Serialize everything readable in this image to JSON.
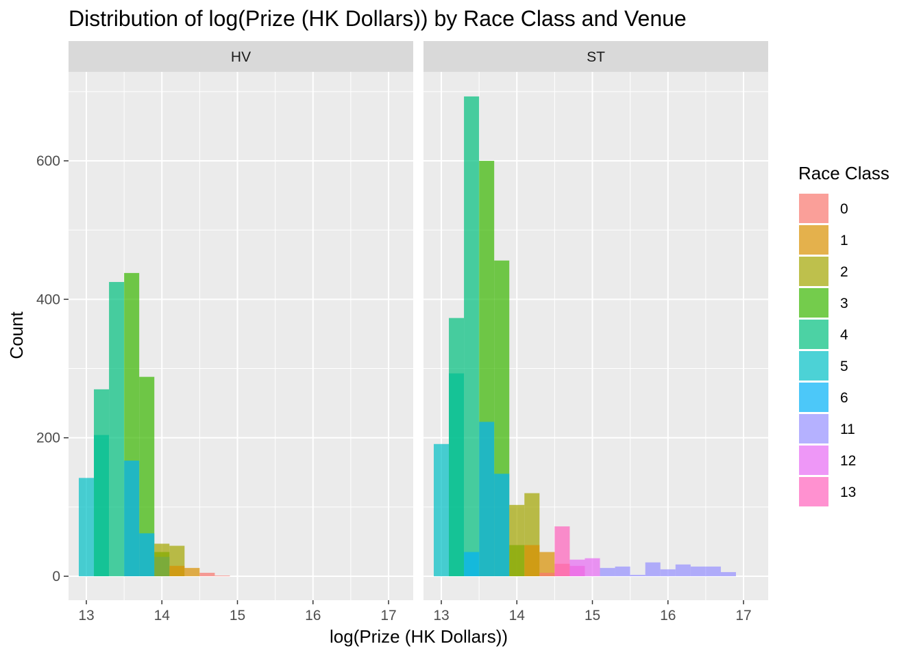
{
  "chart_data": {
    "type": "histogram",
    "title": "Distribution of log(Prize (HK Dollars)) by Race Class and Venue",
    "xlabel": "log(Prize (HK Dollars))",
    "ylabel": "Count",
    "xlim": [
      12.8,
      17.3
    ],
    "ylim": [
      -30,
      720
    ],
    "x_ticks": [
      13,
      14,
      15,
      16,
      17
    ],
    "y_ticks": [
      0,
      200,
      400,
      600
    ],
    "bin_width": 0.2,
    "grid": true,
    "bar_opacity": 0.7,
    "legend": {
      "title": "Race Class",
      "position": "right",
      "entries": [
        {
          "label": "0",
          "color": "#F8766D"
        },
        {
          "label": "1",
          "color": "#D89000"
        },
        {
          "label": "2",
          "color": "#A3A500"
        },
        {
          "label": "3",
          "color": "#39B600"
        },
        {
          "label": "4",
          "color": "#00BF7D"
        },
        {
          "label": "5",
          "color": "#00BFC4"
        },
        {
          "label": "6",
          "color": "#00B0F6"
        },
        {
          "label": "11",
          "color": "#9590FF"
        },
        {
          "label": "12",
          "color": "#E76BF3"
        },
        {
          "label": "13",
          "color": "#FF62BC"
        }
      ]
    },
    "panels": [
      {
        "name": "HV",
        "series": [
          {
            "name": "5",
            "bins": [
              [
                13.0,
                142
              ],
              [
                13.2,
                204
              ],
              [
                13.4,
                0
              ]
            ]
          },
          {
            "name": "4",
            "bins": [
              [
                13.2,
                270
              ],
              [
                13.4,
                425
              ],
              [
                13.6,
                0
              ]
            ]
          },
          {
            "name": "3",
            "bins": [
              [
                13.6,
                438
              ],
              [
                13.8,
                288
              ],
              [
                14.0,
                35
              ],
              [
                14.2,
                0
              ]
            ]
          },
          {
            "name": "6",
            "bins": [
              [
                13.6,
                167
              ],
              [
                13.8,
                62
              ],
              [
                14.0,
                28
              ]
            ]
          },
          {
            "name": "2",
            "bins": [
              [
                14.0,
                47
              ],
              [
                14.2,
                44
              ]
            ]
          },
          {
            "name": "1",
            "bins": [
              [
                14.2,
                15
              ],
              [
                14.4,
                12
              ]
            ]
          },
          {
            "name": "0",
            "bins": [
              [
                14.6,
                5
              ],
              [
                14.8,
                1
              ]
            ]
          }
        ]
      },
      {
        "name": "ST",
        "series": [
          {
            "name": "5",
            "bins": [
              [
                13.0,
                191
              ],
              [
                13.2,
                293
              ],
              [
                13.4,
                0
              ]
            ]
          },
          {
            "name": "4",
            "bins": [
              [
                13.2,
                373
              ],
              [
                13.4,
                693
              ],
              [
                13.6,
                0
              ]
            ]
          },
          {
            "name": "3",
            "bins": [
              [
                13.6,
                600
              ],
              [
                13.8,
                456
              ],
              [
                14.0,
                45
              ]
            ]
          },
          {
            "name": "6",
            "bins": [
              [
                13.4,
                35
              ],
              [
                13.6,
                223
              ],
              [
                13.8,
                148
              ]
            ]
          },
          {
            "name": "2",
            "bins": [
              [
                14.0,
                103
              ],
              [
                14.2,
                120
              ],
              [
                14.4,
                0
              ]
            ]
          },
          {
            "name": "1",
            "bins": [
              [
                14.2,
                45
              ],
              [
                14.4,
                35
              ],
              [
                14.6,
                0
              ]
            ]
          },
          {
            "name": "0",
            "bins": [
              [
                14.4,
                5
              ],
              [
                14.6,
                18
              ]
            ]
          },
          {
            "name": "13",
            "bins": [
              [
                14.6,
                72
              ],
              [
                14.8,
                15
              ]
            ]
          },
          {
            "name": "12",
            "bins": [
              [
                14.8,
                24
              ],
              [
                15.0,
                26
              ]
            ]
          },
          {
            "name": "11",
            "bins": [
              [
                15.2,
                12
              ],
              [
                15.4,
                14
              ],
              [
                15.6,
                2
              ],
              [
                15.8,
                20
              ],
              [
                16.0,
                10
              ],
              [
                16.2,
                17
              ],
              [
                16.4,
                14
              ],
              [
                16.6,
                14
              ],
              [
                16.8,
                6
              ]
            ]
          }
        ]
      }
    ]
  }
}
